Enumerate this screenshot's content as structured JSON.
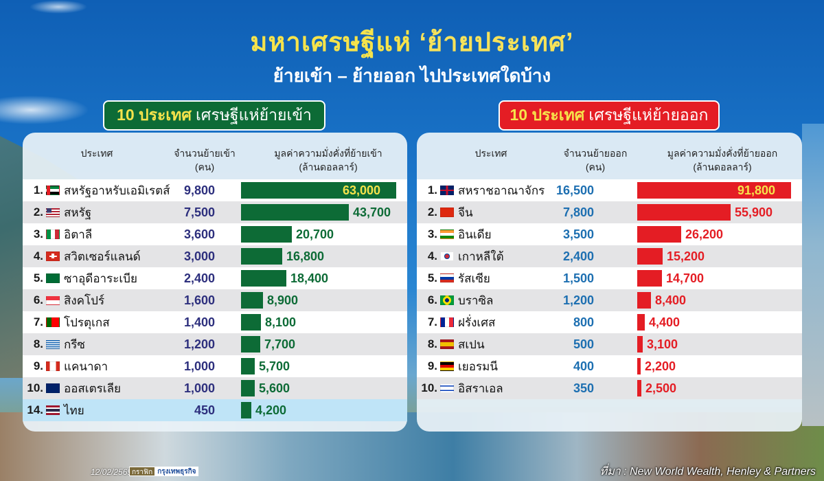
{
  "header": {
    "title_main": "มหาเศรษฐีแห่ ",
    "title_quote": "‘ย้ายประเทศ’",
    "subtitle": "ย้ายเข้า – ย้ายออก ไปประเทศใดบ้าง"
  },
  "colors": {
    "inflow": "#0d6b36",
    "outflow": "#e41d24",
    "highlight": "#f6e34b"
  },
  "inflow": {
    "badge_highlight": "10 ประเทศ",
    "badge_rest": "เศรษฐีแห่ย้ายเข้า",
    "col_country": "ประเทศ",
    "col_count": "จำนวนย้ายเข้า",
    "col_count_unit": "(คน)",
    "col_value": "มูลค่าความมั่งคั่งที่ย้ายเข้า",
    "col_value_unit": "(ล้านดอลลาร์)",
    "rows": [
      {
        "rank": "1.",
        "country": "สหรัฐอาหรับเอมิเรตส์",
        "flag": "uae",
        "count": "9,800",
        "value": "63,000",
        "v": 63000
      },
      {
        "rank": "2.",
        "country": "สหรัฐ",
        "flag": "usa",
        "count": "7,500",
        "value": "43,700",
        "v": 43700
      },
      {
        "rank": "3.",
        "country": "อิตาลี",
        "flag": "italy",
        "count": "3,600",
        "value": "20,700",
        "v": 20700
      },
      {
        "rank": "4.",
        "country": "สวิตเซอร์แลนด์",
        "flag": "switzerland",
        "count": "3,000",
        "value": "16,800",
        "v": 16800
      },
      {
        "rank": "5.",
        "country": "ซาอุดีอาระเบีย",
        "flag": "saudi",
        "count": "2,400",
        "value": "18,400",
        "v": 18400
      },
      {
        "rank": "6.",
        "country": "สิงคโปร์",
        "flag": "singapore",
        "count": "1,600",
        "value": "8,900",
        "v": 8900
      },
      {
        "rank": "7.",
        "country": "โปรตุเกส",
        "flag": "portugal",
        "count": "1,400",
        "value": "8,100",
        "v": 8100
      },
      {
        "rank": "8.",
        "country": "กรีซ",
        "flag": "greece",
        "count": "1,200",
        "value": "7,700",
        "v": 7700
      },
      {
        "rank": "9.",
        "country": "แคนาดา",
        "flag": "canada",
        "count": "1,000",
        "value": "5,700",
        "v": 5700
      },
      {
        "rank": "10.",
        "country": "ออสเตรเลีย",
        "flag": "australia",
        "count": "1,000",
        "value": "5,600",
        "v": 5600
      },
      {
        "rank": "14.",
        "country": "ไทย",
        "flag": "thailand",
        "count": "450",
        "value": "4,200",
        "v": 4200
      }
    ]
  },
  "outflow": {
    "badge_highlight": "10 ประเทศ",
    "badge_rest": "เศรษฐีแห่ย้ายออก",
    "col_country": "ประเทศ",
    "col_count": "จำนวนย้ายออก",
    "col_count_unit": "(คน)",
    "col_value": "มูลค่าความมั่งคั่งที่ย้ายออก",
    "col_value_unit": "(ล้านดอลลาร์)",
    "rows": [
      {
        "rank": "1.",
        "country": "สหราชอาณาจักร",
        "flag": "uk",
        "count": "16,500",
        "value": "91,800",
        "v": 91800
      },
      {
        "rank": "2.",
        "country": "จีน",
        "flag": "china",
        "count": "7,800",
        "value": "55,900",
        "v": 55900
      },
      {
        "rank": "3.",
        "country": "อินเดีย",
        "flag": "india",
        "count": "3,500",
        "value": "26,200",
        "v": 26200
      },
      {
        "rank": "4.",
        "country": "เกาหลีใต้",
        "flag": "south-korea",
        "count": "2,400",
        "value": "15,200",
        "v": 15200
      },
      {
        "rank": "5.",
        "country": "รัสเซีย",
        "flag": "russia",
        "count": "1,500",
        "value": "14,700",
        "v": 14700
      },
      {
        "rank": "6.",
        "country": "บราซิล",
        "flag": "brazil",
        "count": "1,200",
        "value": "8,400",
        "v": 8400
      },
      {
        "rank": "7.",
        "country": "ฝรั่งเศส",
        "flag": "france",
        "count": "800",
        "value": "4,400",
        "v": 4400
      },
      {
        "rank": "8.",
        "country": "สเปน",
        "flag": "spain",
        "count": "500",
        "value": "3,100",
        "v": 3100
      },
      {
        "rank": "9.",
        "country": "เยอรมนี",
        "flag": "germany",
        "count": "400",
        "value": "2,200",
        "v": 2200
      },
      {
        "rank": "10.",
        "country": "อิสราเอล",
        "flag": "israel",
        "count": "350",
        "value": "2,500",
        "v": 2500
      }
    ]
  },
  "footer": {
    "date": "12/02/2569",
    "logo_a": "กราฟิก",
    "logo_b": "กรุงเทพธุรกิจ",
    "source": "ที่มา : New World Wealth, Henley & Partners"
  },
  "chart_data": [
    {
      "type": "bar",
      "title": "10 ประเทศ เศรษฐีแห่ย้ายเข้า",
      "orientation": "horizontal",
      "categories": [
        "สหรัฐอาหรับเอมิเรตส์",
        "สหรัฐ",
        "อิตาลี",
        "สวิตเซอร์แลนด์",
        "ซาอุดีอาระเบีย",
        "สิงคโปร์",
        "โปรตุเกส",
        "กรีซ",
        "แคนาดา",
        "ออสเตรเลีย",
        "ไทย (14)"
      ],
      "series": [
        {
          "name": "จำนวนย้ายเข้า (คน)",
          "values": [
            9800,
            7500,
            3600,
            3000,
            2400,
            1600,
            1400,
            1200,
            1000,
            1000,
            450
          ]
        },
        {
          "name": "มูลค่าความมั่งคั่งที่ย้ายเข้า (ล้านดอลลาร์)",
          "values": [
            63000,
            43700,
            20700,
            16800,
            18400,
            8900,
            8100,
            7700,
            5700,
            5600,
            4200
          ]
        }
      ],
      "xlabel": "มูลค่าความมั่งคั่งที่ย้ายเข้า (ล้านดอลลาร์)",
      "ylabel": "ประเทศ",
      "color": "#0d6b36"
    },
    {
      "type": "bar",
      "title": "10 ประเทศ เศรษฐีแห่ย้ายออก",
      "orientation": "horizontal",
      "categories": [
        "สหราชอาณาจักร",
        "จีน",
        "อินเดีย",
        "เกาหลีใต้",
        "รัสเซีย",
        "บราซิล",
        "ฝรั่งเศส",
        "สเปน",
        "เยอรมนี",
        "อิสราเอล"
      ],
      "series": [
        {
          "name": "จำนวนย้ายออก (คน)",
          "values": [
            16500,
            7800,
            3500,
            2400,
            1500,
            1200,
            800,
            500,
            400,
            350
          ]
        },
        {
          "name": "มูลค่าความมั่งคั่งที่ย้ายออก (ล้านดอลลาร์)",
          "values": [
            91800,
            55900,
            26200,
            15200,
            14700,
            8400,
            4400,
            3100,
            2200,
            2500
          ]
        }
      ],
      "xlabel": "มูลค่าความมั่งคั่งที่ย้ายออก (ล้านดอลลาร์)",
      "ylabel": "ประเทศ",
      "color": "#e41d24"
    }
  ]
}
